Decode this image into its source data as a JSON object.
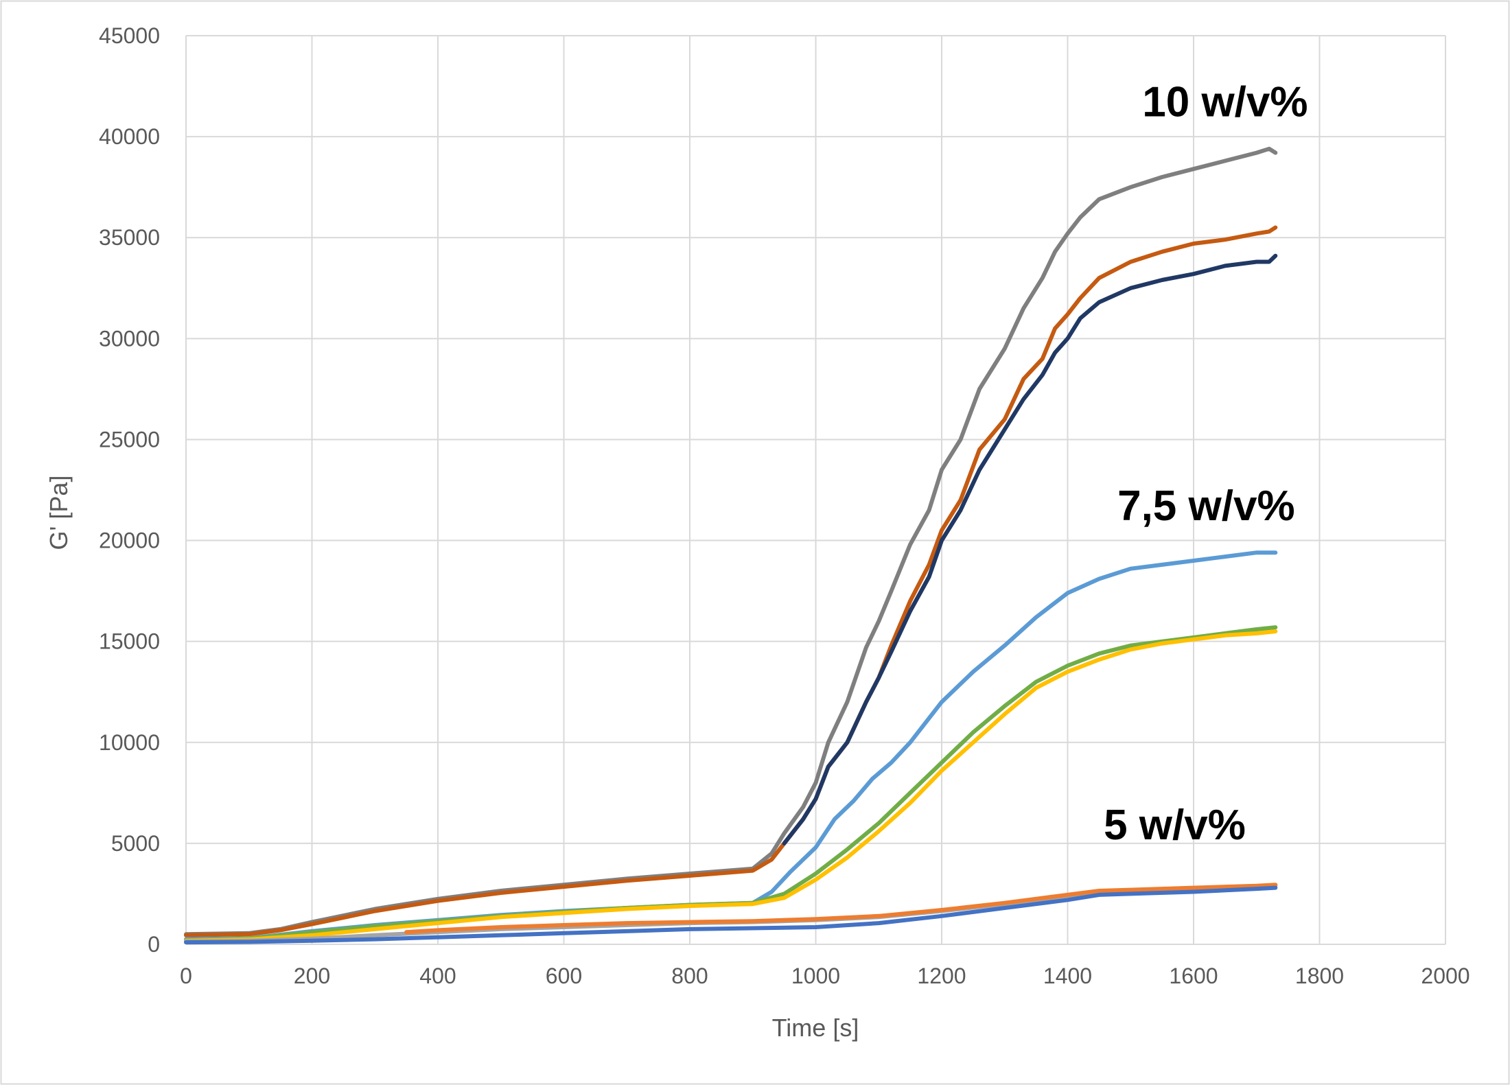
{
  "chart_data": {
    "type": "line",
    "title": "",
    "xlabel": "Time [s]",
    "ylabel": "G' [Pa]",
    "xlim": [
      0,
      2000
    ],
    "ylim": [
      0,
      45000
    ],
    "xticks": [
      0,
      200,
      400,
      600,
      800,
      1000,
      1200,
      1400,
      1600,
      1800,
      2000
    ],
    "yticks": [
      0,
      5000,
      10000,
      15000,
      20000,
      25000,
      30000,
      35000,
      40000,
      45000
    ],
    "grid": true,
    "legend": "none",
    "annotations": [
      {
        "text": "10 w/v%",
        "x": 1650,
        "y": 41000
      },
      {
        "text": "7,5 w/v%",
        "x": 1620,
        "y": 21000
      },
      {
        "text": "5 w/v%",
        "x": 1570,
        "y": 5200
      }
    ],
    "series": [
      {
        "color": "#7f7f7f",
        "group": "10 w/v%",
        "x": [
          0,
          100,
          150,
          200,
          300,
          400,
          500,
          600,
          700,
          800,
          900,
          930,
          950,
          980,
          1000,
          1020,
          1050,
          1080,
          1100,
          1120,
          1150,
          1180,
          1200,
          1230,
          1260,
          1300,
          1330,
          1360,
          1380,
          1400,
          1420,
          1450,
          1500,
          1550,
          1600,
          1650,
          1700,
          1720,
          1730
        ],
        "y": [
          500,
          550,
          750,
          1100,
          1750,
          2250,
          2650,
          2950,
          3250,
          3500,
          3750,
          4500,
          5500,
          6800,
          8000,
          10000,
          12000,
          14700,
          16000,
          17500,
          19800,
          21500,
          23500,
          25000,
          27500,
          29500,
          31500,
          33000,
          34300,
          35200,
          36000,
          36900,
          37500,
          38000,
          38400,
          38800,
          39200,
          39400,
          39200
        ]
      },
      {
        "color": "#c55a11",
        "group": "10 w/v%",
        "x": [
          0,
          100,
          150,
          200,
          300,
          400,
          500,
          600,
          700,
          800,
          900,
          930,
          950,
          980,
          1000,
          1020,
          1050,
          1080,
          1100,
          1120,
          1150,
          1180,
          1200,
          1230,
          1260,
          1300,
          1330,
          1360,
          1380,
          1400,
          1420,
          1450,
          1500,
          1550,
          1600,
          1650,
          1700,
          1720,
          1730
        ],
        "y": [
          450,
          500,
          700,
          1000,
          1650,
          2150,
          2550,
          2850,
          3150,
          3400,
          3650,
          4200,
          5000,
          6200,
          7200,
          8800,
          10000,
          12000,
          13200,
          14800,
          17000,
          18800,
          20500,
          22000,
          24500,
          26000,
          28000,
          29000,
          30500,
          31200,
          32000,
          33000,
          33800,
          34300,
          34700,
          34900,
          35200,
          35300,
          35500
        ]
      },
      {
        "color": "#203864",
        "group": "10 w/v%",
        "x": [
          950,
          980,
          1000,
          1020,
          1050,
          1080,
          1100,
          1120,
          1150,
          1180,
          1200,
          1230,
          1260,
          1300,
          1330,
          1360,
          1380,
          1400,
          1420,
          1450,
          1500,
          1550,
          1600,
          1650,
          1700,
          1720,
          1730
        ],
        "y": [
          5000,
          6200,
          7200,
          8800,
          10000,
          12000,
          13200,
          14500,
          16500,
          18200,
          20000,
          21500,
          23500,
          25500,
          27000,
          28200,
          29300,
          30000,
          31000,
          31800,
          32500,
          32900,
          33200,
          33600,
          33800,
          33800,
          34100
        ]
      },
      {
        "color": "#5b9bd5",
        "group": "7,5 w/v%",
        "x": [
          0,
          100,
          200,
          300,
          400,
          500,
          600,
          700,
          800,
          900,
          930,
          960,
          1000,
          1030,
          1060,
          1090,
          1120,
          1150,
          1200,
          1250,
          1300,
          1350,
          1400,
          1450,
          1500,
          1550,
          1600,
          1650,
          1700,
          1730
        ],
        "y": [
          250,
          300,
          650,
          950,
          1200,
          1450,
          1650,
          1800,
          1950,
          2050,
          2600,
          3600,
          4800,
          6200,
          7100,
          8200,
          9000,
          10000,
          12000,
          13500,
          14800,
          16200,
          17400,
          18100,
          18600,
          18800,
          19000,
          19200,
          19400,
          19400
        ]
      },
      {
        "color": "#70ad47",
        "group": "7,5 w/v%",
        "x": [
          0,
          100,
          200,
          300,
          400,
          500,
          600,
          700,
          800,
          900,
          950,
          1000,
          1050,
          1100,
          1150,
          1200,
          1250,
          1300,
          1350,
          1400,
          1450,
          1500,
          1550,
          1600,
          1650,
          1700,
          1730
        ],
        "y": [
          200,
          280,
          600,
          900,
          1150,
          1400,
          1600,
          1800,
          1950,
          2050,
          2500,
          3500,
          4700,
          6000,
          7500,
          9000,
          10500,
          11800,
          13000,
          13800,
          14400,
          14800,
          15000,
          15200,
          15400,
          15600,
          15700
        ]
      },
      {
        "color": "#ffc000",
        "group": "7,5 w/v%",
        "x": [
          0,
          100,
          200,
          300,
          400,
          500,
          600,
          700,
          800,
          900,
          950,
          1000,
          1050,
          1100,
          1150,
          1200,
          1250,
          1300,
          1350,
          1400,
          1450,
          1500,
          1550,
          1600,
          1650,
          1700,
          1730
        ],
        "y": [
          180,
          240,
          450,
          750,
          1050,
          1350,
          1550,
          1750,
          1900,
          2000,
          2300,
          3200,
          4300,
          5600,
          7000,
          8600,
          10000,
          11400,
          12700,
          13500,
          14100,
          14600,
          14900,
          15100,
          15300,
          15400,
          15500
        ]
      },
      {
        "color": "#a5a5a5",
        "group": "5 w/v%",
        "x": [
          0,
          100,
          200,
          300,
          400,
          500,
          600,
          700,
          800,
          900,
          1000,
          1100,
          1200,
          1300,
          1400,
          1450,
          1500,
          1600,
          1700,
          1730
        ],
        "y": [
          150,
          180,
          280,
          450,
          600,
          750,
          850,
          950,
          1050,
          1100,
          1200,
          1350,
          1650,
          2000,
          2400,
          2600,
          2650,
          2750,
          2850,
          2900
        ]
      },
      {
        "color": "#ed7d31",
        "group": "5 w/v%",
        "x": [
          350,
          400,
          500,
          600,
          700,
          800,
          900,
          1000,
          1100,
          1200,
          1300,
          1400,
          1450,
          1500,
          1600,
          1700,
          1730
        ],
        "y": [
          600,
          700,
          850,
          950,
          1050,
          1100,
          1150,
          1250,
          1400,
          1700,
          2050,
          2450,
          2650,
          2700,
          2800,
          2900,
          2950
        ]
      },
      {
        "color": "#4472c4",
        "group": "5 w/v%",
        "x": [
          0,
          100,
          200,
          300,
          400,
          500,
          600,
          700,
          800,
          900,
          1000,
          1100,
          1200,
          1300,
          1400,
          1450,
          1500,
          1600,
          1700,
          1730
        ],
        "y": [
          100,
          120,
          180,
          250,
          350,
          450,
          550,
          650,
          750,
          800,
          850,
          1050,
          1400,
          1800,
          2200,
          2450,
          2500,
          2600,
          2750,
          2800
        ]
      }
    ]
  }
}
